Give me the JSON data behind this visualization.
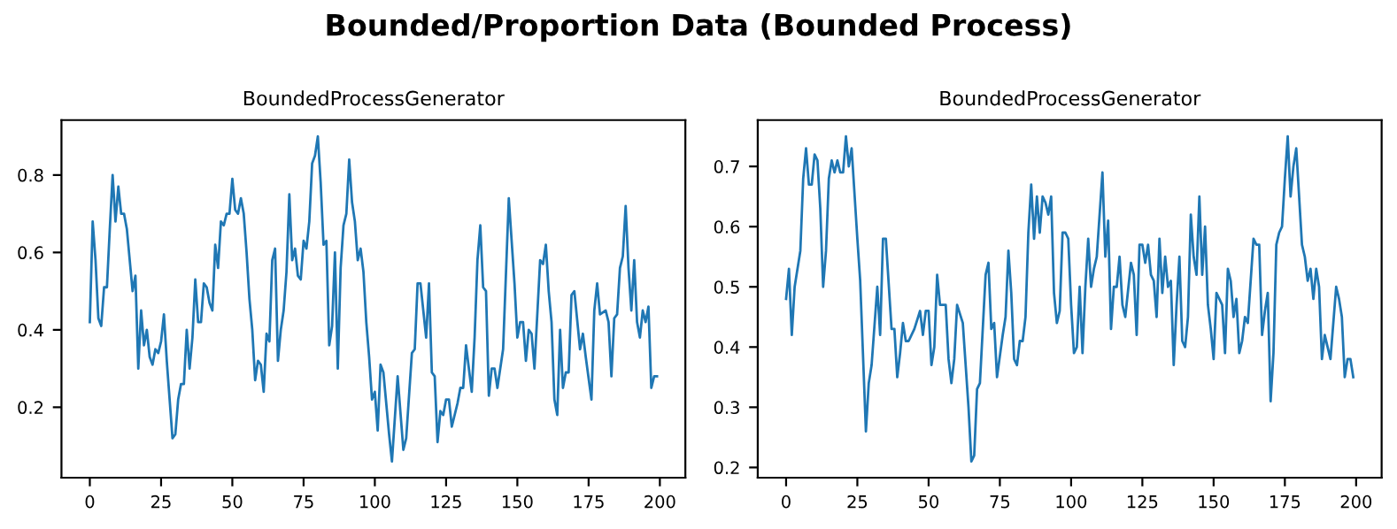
{
  "chart_data": [
    {
      "type": "line",
      "title": "BoundedProcessGenerator",
      "annotations": [
        "Bounded/Proportion Data (Bounded Process)"
      ],
      "series": [
        {
          "color": "#1f77b4",
          "x": [
            0,
            1,
            2,
            3,
            4,
            5,
            6,
            7,
            8,
            9,
            10,
            11,
            12,
            13,
            14,
            15,
            16,
            17,
            18,
            19,
            20,
            21,
            22,
            23,
            24,
            25,
            26,
            27,
            28,
            29,
            30,
            31,
            32,
            33,
            34,
            35,
            36,
            37,
            38,
            39,
            40,
            41,
            42,
            43,
            44,
            45,
            46,
            47,
            48,
            49,
            50,
            51,
            52,
            53,
            54,
            55,
            56,
            57,
            58,
            59,
            60,
            61,
            62,
            63,
            64,
            65,
            66,
            67,
            68,
            69,
            70,
            71,
            72,
            73,
            74,
            75,
            76,
            77,
            78,
            79,
            80,
            81,
            82,
            83,
            84,
            85,
            86,
            87,
            88,
            89,
            90,
            91,
            92,
            93,
            94,
            95,
            96,
            97,
            98,
            99,
            100,
            101,
            102,
            103,
            105,
            106,
            108,
            110,
            111,
            113,
            114,
            115,
            116,
            118,
            119,
            120,
            121,
            122,
            123,
            124,
            125,
            126,
            127,
            129,
            130,
            131,
            132,
            134,
            135,
            136,
            137,
            138,
            139,
            140,
            141,
            142,
            143,
            145,
            147,
            149,
            150,
            151,
            152,
            153,
            154,
            155,
            156,
            158,
            159,
            160,
            161,
            162,
            163,
            164,
            165,
            166,
            167,
            168,
            169,
            170,
            172,
            173,
            174,
            176,
            177,
            178,
            179,
            181,
            182,
            183,
            184,
            185,
            186,
            187,
            188,
            189,
            190,
            191,
            192,
            193,
            194,
            195,
            196,
            197,
            198,
            199
          ],
          "values": [
            0.42,
            0.68,
            0.58,
            0.43,
            0.41,
            0.51,
            0.51,
            0.66,
            0.8,
            0.68,
            0.77,
            0.7,
            0.7,
            0.66,
            0.58,
            0.5,
            0.54,
            0.3,
            0.45,
            0.36,
            0.4,
            0.33,
            0.31,
            0.35,
            0.34,
            0.37,
            0.44,
            0.32,
            0.22,
            0.12,
            0.13,
            0.22,
            0.26,
            0.26,
            0.4,
            0.3,
            0.38,
            0.53,
            0.42,
            0.42,
            0.52,
            0.51,
            0.47,
            0.45,
            0.62,
            0.56,
            0.68,
            0.67,
            0.7,
            0.7,
            0.79,
            0.71,
            0.7,
            0.74,
            0.7,
            0.6,
            0.48,
            0.4,
            0.27,
            0.32,
            0.31,
            0.24,
            0.39,
            0.37,
            0.58,
            0.61,
            0.32,
            0.4,
            0.45,
            0.55,
            0.75,
            0.58,
            0.61,
            0.54,
            0.53,
            0.63,
            0.61,
            0.68,
            0.83,
            0.85,
            0.9,
            0.78,
            0.62,
            0.63,
            0.36,
            0.41,
            0.6,
            0.3,
            0.56,
            0.67,
            0.7,
            0.84,
            0.73,
            0.68,
            0.58,
            0.61,
            0.55,
            0.42,
            0.33,
            0.22,
            0.24,
            0.14,
            0.31,
            0.29,
            0.13,
            0.06,
            0.28,
            0.09,
            0.12,
            0.34,
            0.35,
            0.52,
            0.52,
            0.38,
            0.52,
            0.29,
            0.28,
            0.11,
            0.19,
            0.18,
            0.22,
            0.22,
            0.15,
            0.21,
            0.25,
            0.25,
            0.36,
            0.24,
            0.38,
            0.58,
            0.67,
            0.51,
            0.5,
            0.23,
            0.3,
            0.3,
            0.25,
            0.35,
            0.74,
            0.52,
            0.38,
            0.42,
            0.42,
            0.32,
            0.4,
            0.39,
            0.3,
            0.58,
            0.57,
            0.62,
            0.5,
            0.42,
            0.22,
            0.18,
            0.4,
            0.25,
            0.29,
            0.29,
            0.49,
            0.5,
            0.35,
            0.39,
            0.33,
            0.22,
            0.45,
            0.52,
            0.44,
            0.45,
            0.42,
            0.28,
            0.43,
            0.44,
            0.56,
            0.59,
            0.72,
            0.56,
            0.45,
            0.58,
            0.42,
            0.38,
            0.45,
            0.42,
            0.46,
            0.25,
            0.28,
            0.28
          ]
        }
      ],
      "xlim": [
        -9.95,
        208.95
      ],
      "xticks": [
        0,
        25,
        50,
        75,
        100,
        125,
        150,
        175,
        200
      ],
      "ylim": [
        0.018,
        0.942
      ],
      "yticks": [
        0.2,
        0.4,
        0.6,
        0.8
      ],
      "grid": false,
      "legend": false
    },
    {
      "type": "line",
      "title": "BoundedProcessGenerator",
      "series": [
        {
          "color": "#1f77b4",
          "x": [
            0,
            1,
            2,
            3,
            5,
            6,
            7,
            8,
            9,
            10,
            11,
            12,
            13,
            14,
            15,
            16,
            17,
            18,
            19,
            20,
            21,
            22,
            23,
            25,
            26,
            28,
            29,
            30,
            32,
            33,
            34,
            35,
            37,
            38,
            39,
            40,
            41,
            42,
            43,
            45,
            47,
            48,
            49,
            50,
            51,
            52,
            53,
            54,
            56,
            57,
            58,
            59,
            60,
            62,
            64,
            65,
            66,
            67,
            68,
            70,
            71,
            72,
            73,
            74,
            76,
            77,
            78,
            79,
            80,
            81,
            82,
            83,
            84,
            85,
            86,
            87,
            88,
            89,
            90,
            91,
            92,
            93,
            94,
            95,
            96,
            97,
            98,
            99,
            100,
            101,
            102,
            103,
            104,
            105,
            106,
            107,
            108,
            109,
            111,
            112,
            113,
            114,
            115,
            116,
            117,
            118,
            119,
            121,
            122,
            123,
            124,
            125,
            126,
            127,
            128,
            129,
            130,
            131,
            132,
            133,
            134,
            135,
            136,
            137,
            138,
            139,
            140,
            141,
            142,
            143,
            144,
            145,
            146,
            147,
            148,
            149,
            150,
            151,
            152,
            153,
            154,
            155,
            156,
            157,
            158,
            159,
            160,
            161,
            162,
            164,
            165,
            166,
            167,
            168,
            169,
            170,
            171,
            172,
            173,
            174,
            175,
            176,
            177,
            178,
            179,
            180,
            181,
            182,
            183,
            184,
            185,
            186,
            187,
            188,
            189,
            190,
            191,
            193,
            194,
            195,
            196,
            197,
            198,
            199
          ],
          "values": [
            0.48,
            0.53,
            0.42,
            0.5,
            0.56,
            0.68,
            0.73,
            0.67,
            0.67,
            0.72,
            0.71,
            0.63,
            0.5,
            0.56,
            0.68,
            0.71,
            0.69,
            0.71,
            0.69,
            0.69,
            0.75,
            0.7,
            0.73,
            0.58,
            0.51,
            0.26,
            0.34,
            0.37,
            0.5,
            0.42,
            0.58,
            0.58,
            0.43,
            0.43,
            0.35,
            0.39,
            0.44,
            0.41,
            0.41,
            0.43,
            0.46,
            0.42,
            0.46,
            0.46,
            0.37,
            0.4,
            0.52,
            0.47,
            0.47,
            0.38,
            0.34,
            0.38,
            0.47,
            0.44,
            0.3,
            0.21,
            0.22,
            0.33,
            0.34,
            0.52,
            0.54,
            0.43,
            0.44,
            0.35,
            0.42,
            0.45,
            0.56,
            0.49,
            0.38,
            0.37,
            0.41,
            0.41,
            0.45,
            0.59,
            0.67,
            0.58,
            0.65,
            0.59,
            0.65,
            0.64,
            0.62,
            0.65,
            0.49,
            0.44,
            0.46,
            0.59,
            0.59,
            0.58,
            0.47,
            0.39,
            0.4,
            0.5,
            0.39,
            0.5,
            0.58,
            0.5,
            0.53,
            0.55,
            0.69,
            0.55,
            0.61,
            0.43,
            0.5,
            0.5,
            0.55,
            0.47,
            0.45,
            0.54,
            0.52,
            0.42,
            0.57,
            0.57,
            0.54,
            0.57,
            0.52,
            0.51,
            0.45,
            0.58,
            0.49,
            0.55,
            0.5,
            0.51,
            0.37,
            0.47,
            0.55,
            0.41,
            0.4,
            0.45,
            0.62,
            0.55,
            0.52,
            0.65,
            0.52,
            0.6,
            0.47,
            0.43,
            0.38,
            0.49,
            0.48,
            0.47,
            0.39,
            0.53,
            0.51,
            0.45,
            0.48,
            0.39,
            0.41,
            0.45,
            0.44,
            0.58,
            0.57,
            0.57,
            0.42,
            0.46,
            0.49,
            0.31,
            0.39,
            0.57,
            0.59,
            0.6,
            0.68,
            0.75,
            0.65,
            0.7,
            0.73,
            0.65,
            0.57,
            0.55,
            0.51,
            0.53,
            0.48,
            0.53,
            0.5,
            0.38,
            0.42,
            0.4,
            0.38,
            0.5,
            0.48,
            0.45,
            0.35,
            0.38,
            0.38,
            0.35
          ]
        }
      ],
      "xlim": [
        -9.95,
        208.95
      ],
      "xticks": [
        0,
        25,
        50,
        75,
        100,
        125,
        150,
        175,
        200
      ],
      "ylim": [
        0.183,
        0.777
      ],
      "yticks": [
        0.2,
        0.3,
        0.4,
        0.5,
        0.6,
        0.7
      ],
      "grid": false,
      "legend": false
    }
  ]
}
